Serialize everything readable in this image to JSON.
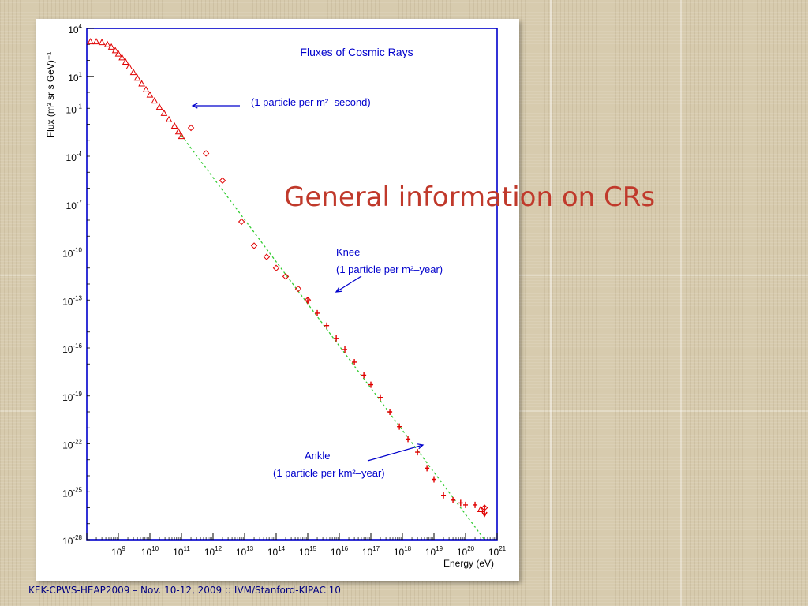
{
  "slide": {
    "title": "General information on CRs",
    "footer": "KEK-CPWS-HEAP2009 – Nov. 10-12, 2009 :: IVM/Stanford-KIPAC  10"
  },
  "colors": {
    "frame": "#0000cc",
    "annotation": "#0000cc",
    "data_points": "#e00000",
    "fit_line": "#33cc33",
    "title_text": "#c0392b",
    "footer_text": "#000080"
  },
  "chart_data": {
    "type": "scatter",
    "title": "Fluxes of Cosmic Rays",
    "xlabel": "Energy (eV)",
    "ylabel": "Flux (m² sr s GeV)⁻¹",
    "x_scale": "log",
    "y_scale": "log",
    "xlim": [
      100000000.0,
      1e+21
    ],
    "ylim": [
      1e-28,
      10000.0
    ],
    "x_tick_exponents": [
      9,
      10,
      11,
      12,
      13,
      14,
      15,
      16,
      17,
      18,
      19,
      20,
      21
    ],
    "y_tick_exponents": [
      4,
      1,
      -1,
      -4,
      -7,
      -10,
      -13,
      -16,
      -19,
      -22,
      -25,
      -28
    ],
    "grid": false,
    "series": [
      {
        "marker": "triangle",
        "x": [
          130000000.0,
          200000000.0,
          300000000.0,
          450000000.0,
          600000000.0,
          800000000.0,
          1000000000.0,
          1300000000.0,
          1700000000.0,
          2200000000.0,
          3000000000.0,
          4000000000.0,
          5500000000.0,
          7500000000.0,
          10000000000.0,
          14000000000.0,
          20000000000.0,
          28000000000.0,
          40000000000.0,
          60000000000.0,
          80000000000.0,
          100000000000.0,
          3e+20
        ],
        "y": [
          1500,
          1500,
          1350,
          1000,
          700,
          420,
          260,
          150,
          80,
          40,
          18,
          8,
          3.5,
          1.5,
          0.7,
          0.3,
          0.12,
          0.05,
          0.02,
          0.008,
          0.0035,
          0.0018,
          8e-27
        ]
      },
      {
        "marker": "diamond",
        "x": [
          200000000000.0,
          600000000000.0,
          2000000000000.0,
          8000000000000.0,
          20000000000000.0,
          50000000000000.0,
          100000000000000.0,
          200000000000000.0,
          500000000000000.0,
          1000000000000000.0,
          4e+20
        ],
        "y": [
          0.006,
          0.00015,
          3e-06,
          8e-09,
          2.5e-10,
          5e-11,
          1e-11,
          3e-12,
          5e-13,
          1e-13,
          1e-26
        ]
      },
      {
        "marker": "cross",
        "x": [
          1000000000000000.0,
          2000000000000000.0,
          4000000000000000.0,
          8000000000000000.0,
          1.5e+16,
          3e+16,
          6e+16,
          1e+17,
          2e+17,
          4e+17,
          8e+17,
          1.5e+18,
          3e+18,
          6e+18,
          1e+19,
          2e+19,
          4e+19,
          7e+19,
          1e+20,
          2e+20
        ],
        "y": [
          9e-14,
          1.5e-14,
          2.5e-15,
          4e-16,
          8e-17,
          1.3e-17,
          2e-18,
          5e-19,
          8e-20,
          1e-20,
          1.2e-21,
          2e-22,
          3e-23,
          3e-24,
          6e-25,
          6e-26,
          3e-26,
          2e-26,
          1.5e-26,
          1.5e-26
        ]
      },
      {
        "marker": "arrow-down",
        "x": [
          4e+20
        ],
        "y": [
          3e-27
        ]
      }
    ],
    "fit_line": {
      "style": "dashed",
      "x": [
        100000000000.0,
        4e+20
      ],
      "y": [
        0.002,
        1e-28
      ]
    },
    "annotations": [
      {
        "line1": "(1 particle per m²–second)",
        "line2": "",
        "x": 150000000000.0,
        "y": 0.1
      },
      {
        "line1": "Knee",
        "line2": "(1 particle per m²–year)",
        "x": 8000000000000000.0,
        "y": 3e-15
      },
      {
        "line1": "Ankle",
        "line2": "(1 particle per km²–year)",
        "x": 6e+18,
        "y": 5e-24
      }
    ]
  }
}
